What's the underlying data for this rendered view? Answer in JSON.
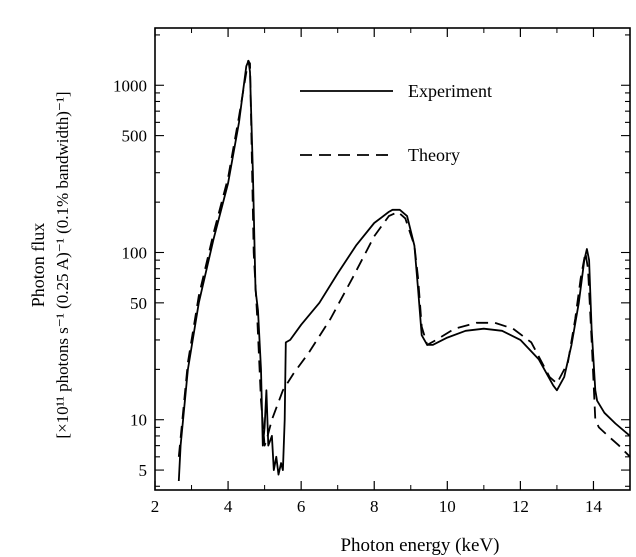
{
  "chart_data": {
    "type": "line",
    "title": "",
    "xlabel": "Photon energy (keV)",
    "ylabel_line1": "Photon flux",
    "ylabel_line2": "[×10¹¹ photons s⁻¹ (0.25 A)⁻¹ (0.1% bandwidth)⁻¹]",
    "xlim": [
      2,
      15
    ],
    "ylim": [
      3.8,
      2200
    ],
    "yscale": "log",
    "x_ticks": [
      2,
      4,
      6,
      8,
      10,
      12,
      14
    ],
    "x_tick_labels": [
      "2",
      "4",
      "6",
      "8",
      "10",
      "12",
      "14"
    ],
    "y_ticks": [
      5,
      10,
      50,
      100,
      500,
      1000
    ],
    "y_tick_labels": [
      "5",
      "10",
      "50",
      "100",
      "500",
      "1000"
    ],
    "legend_position": "top-center",
    "grid": false,
    "series": [
      {
        "name": "Experiment",
        "style": "solid",
        "points": [
          [
            2.65,
            4.3
          ],
          [
            2.7,
            7
          ],
          [
            2.9,
            20
          ],
          [
            3.2,
            50
          ],
          [
            3.6,
            120
          ],
          [
            4.0,
            260
          ],
          [
            4.3,
            600
          ],
          [
            4.5,
            1300
          ],
          [
            4.56,
            1400
          ],
          [
            4.6,
            1200
          ],
          [
            4.68,
            300
          ],
          [
            4.75,
            60
          ],
          [
            4.82,
            45
          ],
          [
            4.9,
            20
          ],
          [
            4.95,
            7
          ],
          [
            5.0,
            9
          ],
          [
            5.05,
            15
          ],
          [
            5.1,
            7
          ],
          [
            5.2,
            8
          ],
          [
            5.25,
            5
          ],
          [
            5.32,
            6
          ],
          [
            5.38,
            4.7
          ],
          [
            5.45,
            5.5
          ],
          [
            5.5,
            5
          ],
          [
            5.55,
            10
          ],
          [
            5.58,
            29
          ],
          [
            5.7,
            30
          ],
          [
            6.0,
            37
          ],
          [
            6.5,
            50
          ],
          [
            7.0,
            75
          ],
          [
            7.5,
            110
          ],
          [
            8.0,
            150
          ],
          [
            8.4,
            175
          ],
          [
            8.5,
            180
          ],
          [
            8.7,
            180
          ],
          [
            8.9,
            165
          ],
          [
            9.1,
            110
          ],
          [
            9.2,
            60
          ],
          [
            9.3,
            32
          ],
          [
            9.45,
            28
          ],
          [
            9.6,
            28
          ],
          [
            10.0,
            31
          ],
          [
            10.5,
            34
          ],
          [
            11.0,
            35
          ],
          [
            11.5,
            34
          ],
          [
            12.0,
            30
          ],
          [
            12.5,
            23
          ],
          [
            12.9,
            16
          ],
          [
            13.0,
            15
          ],
          [
            13.2,
            18
          ],
          [
            13.4,
            28
          ],
          [
            13.6,
            50
          ],
          [
            13.75,
            90
          ],
          [
            13.82,
            105
          ],
          [
            13.88,
            90
          ],
          [
            13.95,
            35
          ],
          [
            14.05,
            15
          ],
          [
            14.1,
            13
          ],
          [
            14.3,
            11
          ],
          [
            14.6,
            9.5
          ],
          [
            15.0,
            8
          ]
        ]
      },
      {
        "name": "Theory",
        "style": "dashed",
        "points": [
          [
            2.65,
            6
          ],
          [
            2.9,
            22
          ],
          [
            3.2,
            55
          ],
          [
            3.6,
            130
          ],
          [
            4.0,
            280
          ],
          [
            4.3,
            650
          ],
          [
            4.55,
            1400
          ],
          [
            4.6,
            1350
          ],
          [
            4.7,
            100
          ],
          [
            4.8,
            40
          ],
          [
            4.9,
            13
          ],
          [
            5.0,
            7
          ],
          [
            5.05,
            7.5
          ],
          [
            5.2,
            10
          ],
          [
            5.5,
            15
          ],
          [
            5.8,
            19
          ],
          [
            6.2,
            25
          ],
          [
            6.8,
            40
          ],
          [
            7.4,
            70
          ],
          [
            8.0,
            125
          ],
          [
            8.4,
            165
          ],
          [
            8.65,
            175
          ],
          [
            8.85,
            160
          ],
          [
            9.1,
            110
          ],
          [
            9.2,
            70
          ],
          [
            9.3,
            36
          ],
          [
            9.45,
            28
          ],
          [
            9.7,
            30
          ],
          [
            10.2,
            35
          ],
          [
            10.8,
            38
          ],
          [
            11.3,
            38
          ],
          [
            11.8,
            35
          ],
          [
            12.3,
            29
          ],
          [
            12.8,
            18
          ],
          [
            13.0,
            16.5
          ],
          [
            13.3,
            22
          ],
          [
            13.5,
            40
          ],
          [
            13.65,
            70
          ],
          [
            13.78,
            100
          ],
          [
            13.85,
            80
          ],
          [
            13.95,
            30
          ],
          [
            14.05,
            10
          ],
          [
            14.15,
            9
          ],
          [
            14.4,
            8
          ],
          [
            14.7,
            7
          ],
          [
            15.0,
            6
          ]
        ]
      }
    ]
  }
}
